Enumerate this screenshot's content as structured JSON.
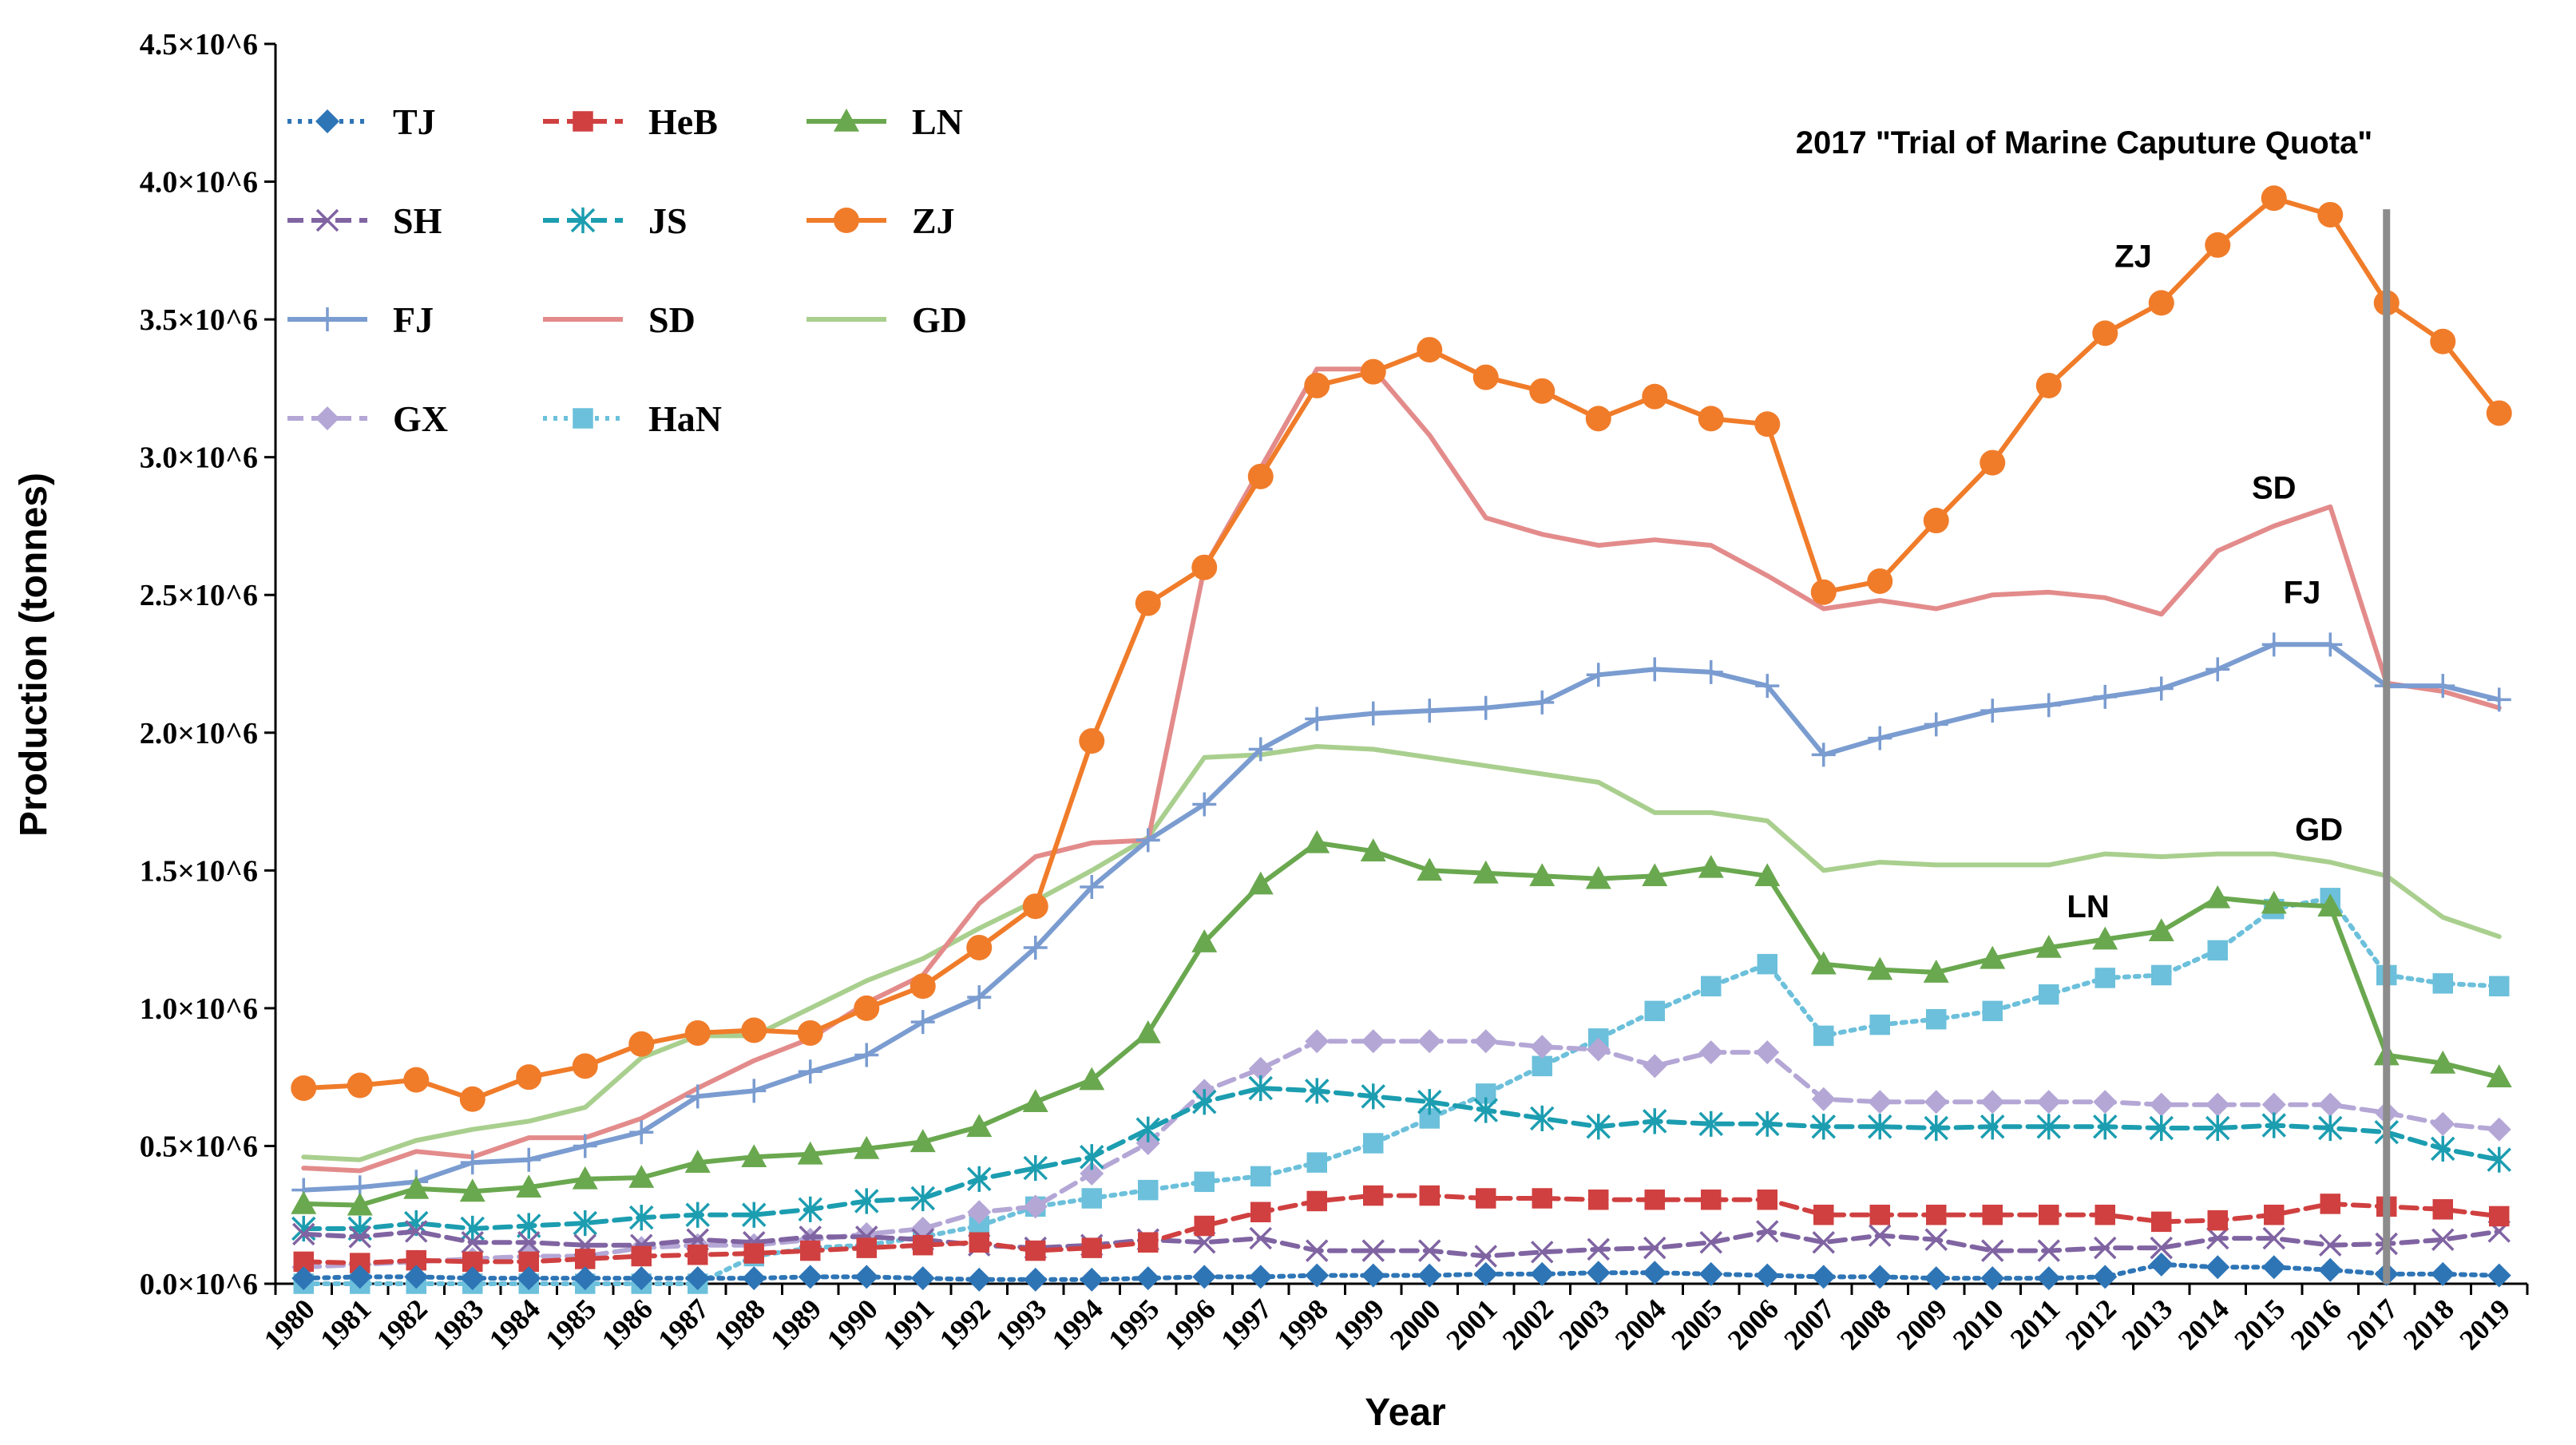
{
  "chart_data": {
    "type": "line",
    "title": "",
    "xlabel": "Year",
    "ylabel": "Production (tonnes)",
    "x": [
      "1980",
      "1981",
      "1982",
      "1983",
      "1984",
      "1985",
      "1986",
      "1987",
      "1988",
      "1989",
      "1990",
      "1991",
      "1992",
      "1993",
      "1994",
      "1995",
      "1996",
      "1997",
      "1998",
      "1999",
      "2000",
      "2001",
      "2002",
      "2003",
      "2004",
      "2005",
      "2006",
      "2007",
      "2008",
      "2009",
      "2010",
      "2011",
      "2012",
      "2013",
      "2014",
      "2015",
      "2016",
      "2017",
      "2018",
      "2019"
    ],
    "ylim": [
      0,
      4500000
    ],
    "yticks": [
      0,
      500000,
      1000000,
      1500000,
      2000000,
      2500000,
      3000000,
      3500000,
      4000000,
      4500000
    ],
    "ytick_labels": [
      "0.0×10^6",
      "0.5×10^6",
      "1.0×10^6",
      "1.5×10^6",
      "2.0×10^6",
      "2.5×10^6",
      "3.0×10^6",
      "3.5×10^6",
      "4.0×10^6",
      "4.5×10^6"
    ],
    "legend_position": "top-left",
    "series": [
      {
        "name": "TJ",
        "color": "#2E75B6",
        "dash": "dotted",
        "marker": "diamond",
        "values": [
          20000,
          25000,
          25000,
          20000,
          20000,
          20000,
          20000,
          20000,
          20000,
          25000,
          25000,
          20000,
          15000,
          15000,
          15000,
          20000,
          25000,
          25000,
          30000,
          30000,
          30000,
          35000,
          35000,
          40000,
          40000,
          35000,
          30000,
          25000,
          25000,
          20000,
          20000,
          20000,
          25000,
          70000,
          60000,
          60000,
          50000,
          35000,
          35000,
          30000
        ]
      },
      {
        "name": "HeB",
        "color": "#D04040",
        "dash": "dashed",
        "marker": "square",
        "values": [
          80000,
          75000,
          85000,
          80000,
          80000,
          90000,
          100000,
          105000,
          110000,
          120000,
          130000,
          140000,
          150000,
          120000,
          130000,
          150000,
          210000,
          260000,
          300000,
          320000,
          320000,
          310000,
          310000,
          305000,
          305000,
          305000,
          305000,
          250000,
          250000,
          250000,
          250000,
          250000,
          250000,
          225000,
          230000,
          250000,
          290000,
          280000,
          270000,
          245000
        ]
      },
      {
        "name": "LN",
        "color": "#6AA84F",
        "dash": "solid",
        "marker": "triangle",
        "values": [
          290000,
          285000,
          345000,
          335000,
          350000,
          380000,
          385000,
          440000,
          460000,
          470000,
          490000,
          515000,
          570000,
          660000,
          740000,
          910000,
          1240000,
          1450000,
          1600000,
          1570000,
          1500000,
          1490000,
          1480000,
          1470000,
          1480000,
          1510000,
          1480000,
          1160000,
          1140000,
          1130000,
          1180000,
          1220000,
          1250000,
          1280000,
          1400000,
          1380000,
          1370000,
          830000,
          800000,
          750000
        ]
      },
      {
        "name": "SH",
        "color": "#8064A2",
        "dash": "dashed",
        "marker": "x",
        "values": [
          180000,
          170000,
          190000,
          150000,
          150000,
          140000,
          140000,
          160000,
          150000,
          170000,
          170000,
          160000,
          140000,
          130000,
          140000,
          160000,
          150000,
          165000,
          120000,
          120000,
          120000,
          100000,
          115000,
          125000,
          130000,
          150000,
          190000,
          150000,
          175000,
          160000,
          120000,
          120000,
          130000,
          130000,
          165000,
          165000,
          140000,
          145000,
          160000,
          190000
        ]
      },
      {
        "name": "JS",
        "color": "#1C9DB0",
        "dash": "dashed",
        "marker": "asterisk",
        "values": [
          200000,
          200000,
          220000,
          200000,
          210000,
          220000,
          240000,
          250000,
          250000,
          270000,
          300000,
          310000,
          380000,
          420000,
          460000,
          560000,
          660000,
          710000,
          700000,
          680000,
          660000,
          630000,
          600000,
          570000,
          590000,
          580000,
          580000,
          570000,
          570000,
          565000,
          570000,
          570000,
          570000,
          565000,
          565000,
          575000,
          565000,
          550000,
          490000,
          450000
        ]
      },
      {
        "name": "ZJ",
        "color": "#F07C2A",
        "dash": "solid",
        "marker": "circle",
        "values": [
          710000,
          720000,
          740000,
          670000,
          750000,
          790000,
          870000,
          910000,
          920000,
          910000,
          1000000,
          1080000,
          1220000,
          1370000,
          1970000,
          2470000,
          2600000,
          2930000,
          3260000,
          3310000,
          3390000,
          3290000,
          3240000,
          3140000,
          3220000,
          3140000,
          3120000,
          2510000,
          2550000,
          2770000,
          2980000,
          3260000,
          3450000,
          3560000,
          3770000,
          3940000,
          3880000,
          3560000,
          3420000,
          3160000
        ]
      },
      {
        "name": "FJ",
        "color": "#7A9CD0",
        "dash": "solid",
        "marker": "plus",
        "values": [
          340000,
          350000,
          370000,
          440000,
          450000,
          500000,
          550000,
          680000,
          700000,
          770000,
          830000,
          950000,
          1040000,
          1220000,
          1440000,
          1610000,
          1740000,
          1940000,
          2050000,
          2070000,
          2080000,
          2090000,
          2110000,
          2210000,
          2230000,
          2220000,
          2170000,
          1920000,
          1980000,
          2030000,
          2080000,
          2100000,
          2130000,
          2160000,
          2230000,
          2320000,
          2320000,
          2170000,
          2170000,
          2120000
        ]
      },
      {
        "name": "SD",
        "color": "#E38B8B",
        "dash": "solid",
        "marker": "none",
        "values": [
          420000,
          410000,
          480000,
          460000,
          530000,
          530000,
          600000,
          710000,
          810000,
          890000,
          1020000,
          1120000,
          1380000,
          1550000,
          1600000,
          1610000,
          2600000,
          2960000,
          3320000,
          3320000,
          3080000,
          2780000,
          2720000,
          2680000,
          2700000,
          2680000,
          2570000,
          2450000,
          2480000,
          2450000,
          2500000,
          2510000,
          2490000,
          2430000,
          2660000,
          2750000,
          2820000,
          2180000,
          2150000,
          2090000
        ]
      },
      {
        "name": "GD",
        "color": "#A9CF8E",
        "dash": "solid",
        "marker": "none",
        "values": [
          460000,
          450000,
          520000,
          560000,
          590000,
          640000,
          820000,
          900000,
          900000,
          1000000,
          1100000,
          1180000,
          1290000,
          1390000,
          1500000,
          1620000,
          1910000,
          1920000,
          1950000,
          1940000,
          1910000,
          1880000,
          1850000,
          1820000,
          1710000,
          1710000,
          1680000,
          1500000,
          1530000,
          1520000,
          1520000,
          1520000,
          1560000,
          1550000,
          1560000,
          1560000,
          1530000,
          1480000,
          1330000,
          1260000
        ]
      },
      {
        "name": "GX",
        "color": "#B4A7D6",
        "dash": "dashed",
        "marker": "diamond",
        "values": [
          60000,
          70000,
          80000,
          90000,
          100000,
          100000,
          130000,
          140000,
          140000,
          160000,
          180000,
          200000,
          260000,
          280000,
          400000,
          510000,
          700000,
          780000,
          880000,
          880000,
          880000,
          880000,
          860000,
          850000,
          790000,
          840000,
          840000,
          670000,
          660000,
          660000,
          660000,
          660000,
          660000,
          650000,
          650000,
          650000,
          650000,
          620000,
          580000,
          560000
        ]
      },
      {
        "name": "HaN",
        "color": "#6CC0DB",
        "dash": "dotted",
        "marker": "square",
        "values": [
          0,
          0,
          0,
          0,
          0,
          0,
          0,
          0,
          100000,
          130000,
          140000,
          170000,
          210000,
          280000,
          310000,
          340000,
          370000,
          390000,
          440000,
          510000,
          600000,
          690000,
          790000,
          890000,
          990000,
          1080000,
          1160000,
          900000,
          940000,
          960000,
          990000,
          1050000,
          1110000,
          1120000,
          1210000,
          1360000,
          1400000,
          1120000,
          1090000,
          1080000
        ]
      }
    ],
    "annotations": {
      "event_label": "2017 \"Trial of Marine Caputure Quota\"",
      "event_year": "2017",
      "series_labels": [
        {
          "text": "ZJ",
          "year": "2012.5",
          "value": 3690000
        },
        {
          "text": "SD",
          "year": "2015",
          "value": 2850000
        },
        {
          "text": "FJ",
          "year": "2015.5",
          "value": 2470000
        },
        {
          "text": "GD",
          "year": "2015.8",
          "value": 1610000
        },
        {
          "text": "LN",
          "year": "2011.7",
          "value": 1330000
        }
      ]
    }
  }
}
